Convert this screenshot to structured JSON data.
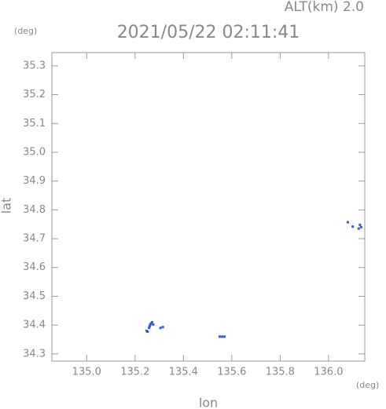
{
  "chart_data": {
    "type": "scatter",
    "title": "2021/05/22 02:11:41",
    "annotation": "ALT(km) 2.0",
    "y_unit": "(deg)",
    "x_unit": "(deg)",
    "x_label": "lon",
    "y_label": "lat",
    "color": "#3358e8",
    "xlim": [
      134.856,
      136.15
    ],
    "ylim": [
      34.275,
      35.346
    ],
    "xticks": [
      {
        "value": 135,
        "label": "135.0"
      },
      135.2,
      135.4,
      135.6,
      135.8,
      {
        "value": 136,
        "label": "136.0"
      }
    ],
    "yticks": [
      34.3,
      34.4,
      34.5,
      34.6,
      34.7,
      34.8,
      34.9,
      {
        "value": 35,
        "label": "35.0"
      },
      35.1,
      35.2,
      35.3
    ],
    "x": [
      135.248,
      135.252,
      135.258,
      135.262,
      135.265,
      135.27,
      135.275,
      135.26,
      135.305,
      135.315,
      135.55,
      135.56,
      135.57,
      136.08,
      136.1,
      136.125,
      136.13,
      136.135
    ],
    "y": [
      34.38,
      34.377,
      34.39,
      34.4,
      34.405,
      34.41,
      34.402,
      34.395,
      34.39,
      34.393,
      34.36,
      34.36,
      34.36,
      34.757,
      34.742,
      34.735,
      34.748,
      34.74
    ]
  }
}
